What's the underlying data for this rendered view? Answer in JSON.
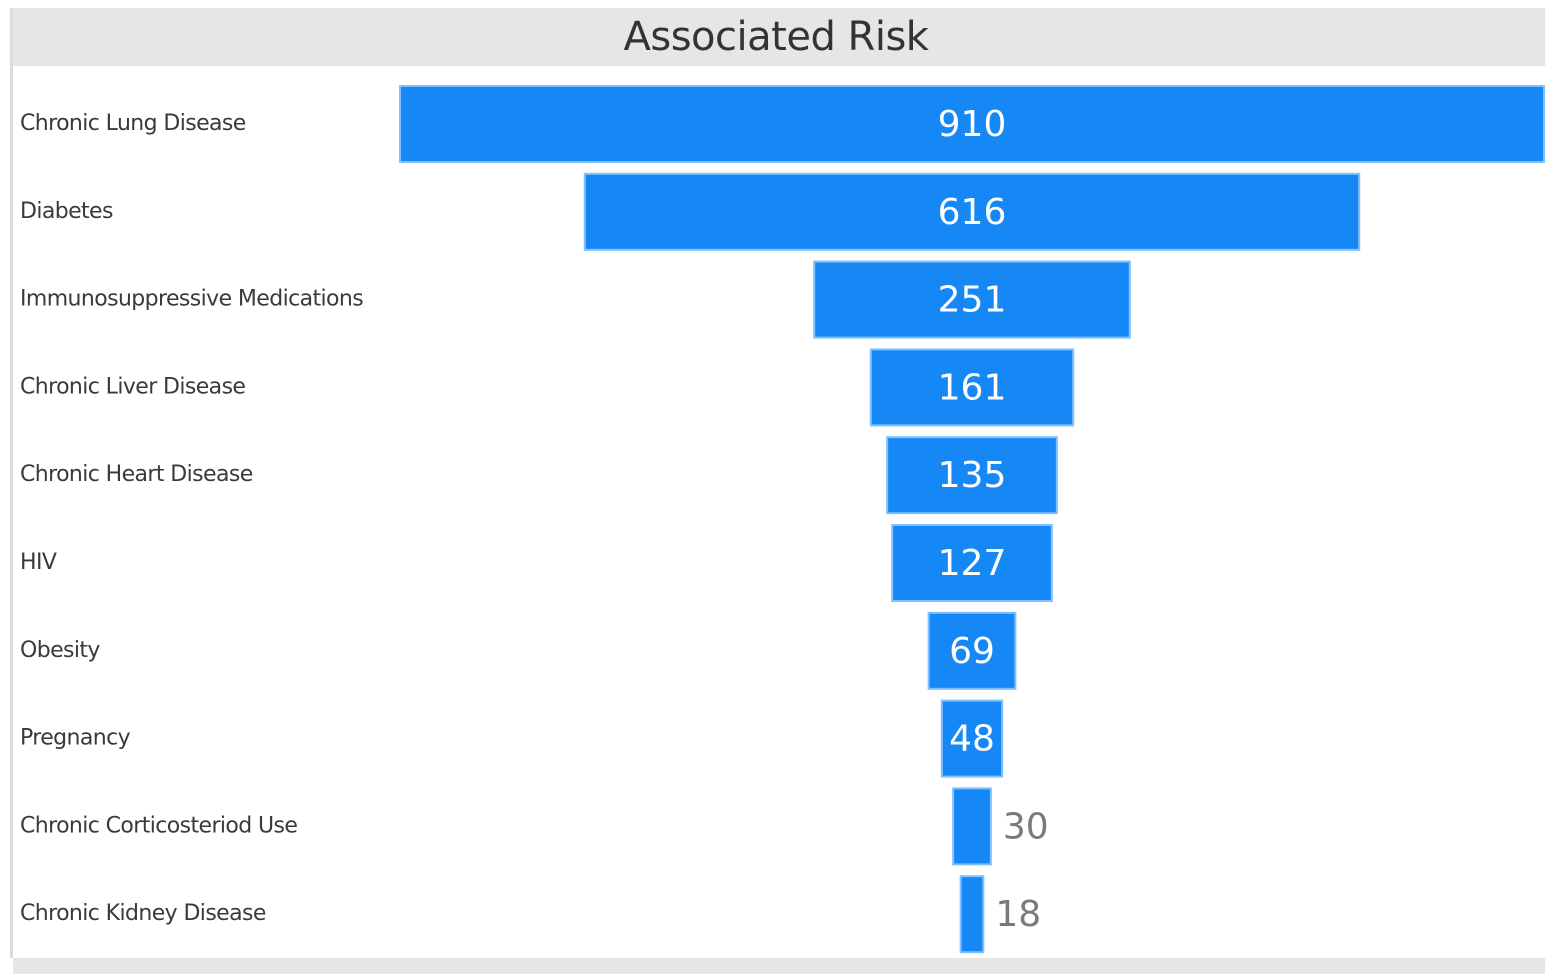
{
  "chart_data": {
    "type": "funnel",
    "title": "Associated Risk",
    "categories": [
      "Chronic Lung Disease",
      "Diabetes",
      "Immunosuppressive Medications",
      "Chronic Liver Disease",
      "Chronic Heart Disease",
      "HIV",
      "Obesity",
      "Pregnancy",
      "Chronic Corticosteriod Use",
      "Chronic Kidney Disease"
    ],
    "values": [
      910,
      616,
      251,
      161,
      135,
      127,
      69,
      48,
      30,
      18
    ],
    "bar_color": "#1688f5",
    "inside_label_color": "#ffffff",
    "outside_label_color": "#7a7a7a"
  }
}
